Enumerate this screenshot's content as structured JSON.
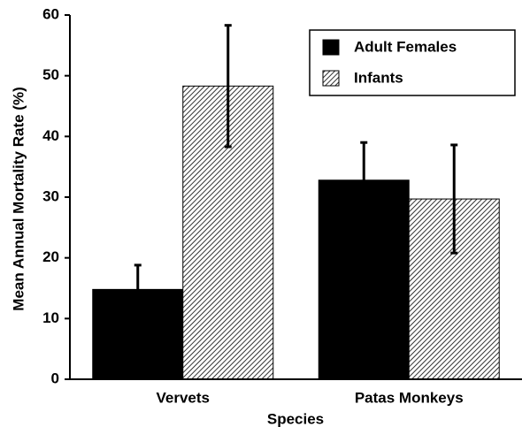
{
  "chart_data": {
    "type": "bar",
    "x_label": "Species",
    "y_label": "Mean Annual Mortality Rate (%)",
    "categories": [
      "Vervets",
      "Patas Monkeys"
    ],
    "series": [
      {
        "name": "Adult Females",
        "color": "#000000",
        "hatch": false,
        "values": [
          14.8,
          32.8
        ],
        "errors": [
          4.0,
          6.2
        ]
      },
      {
        "name": "Infants",
        "color": "#000000",
        "hatch": true,
        "values": [
          48.3,
          29.7
        ],
        "errors": [
          10.0,
          8.9
        ]
      }
    ],
    "ylim": [
      0,
      60
    ],
    "yticks": [
      0,
      10,
      20,
      30,
      40,
      50,
      60
    ],
    "grid": false,
    "legend": "upper right"
  }
}
